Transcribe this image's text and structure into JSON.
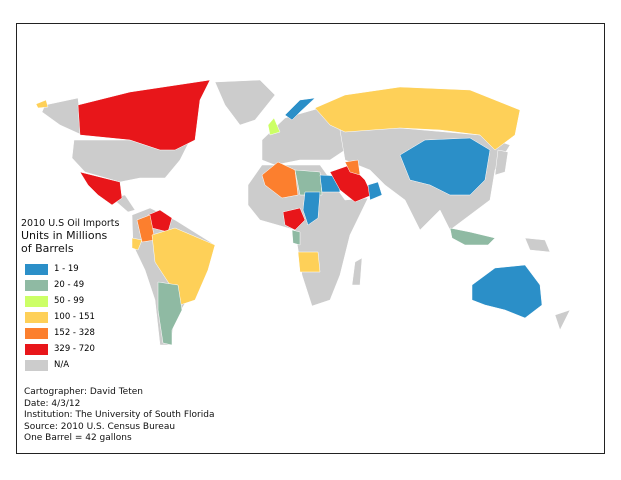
{
  "map": {
    "title": "2010 U.S Oil Imports",
    "subtitle": "Units in Millions of Barrels",
    "legend": [
      {
        "label": "1 - 19",
        "color": "#2b8fc8"
      },
      {
        "label": "20 - 49",
        "color": "#8fbaa3"
      },
      {
        "label": "50 - 99",
        "color": "#ccff66"
      },
      {
        "label": "100 - 151",
        "color": "#fed058"
      },
      {
        "label": "152 - 328",
        "color": "#fc7f2e"
      },
      {
        "label": "329 - 720",
        "color": "#e8161a"
      },
      {
        "label": "N/A",
        "color": "#cccccc"
      }
    ]
  },
  "credits": {
    "cartographer": "Cartographer: David Teten",
    "date": "Date: 4/3/12",
    "institution": "Institution: The University of South Florida",
    "source": "Source: 2010 U.S. Census Bureau",
    "note": "One Barrel = 42 gallons"
  }
}
